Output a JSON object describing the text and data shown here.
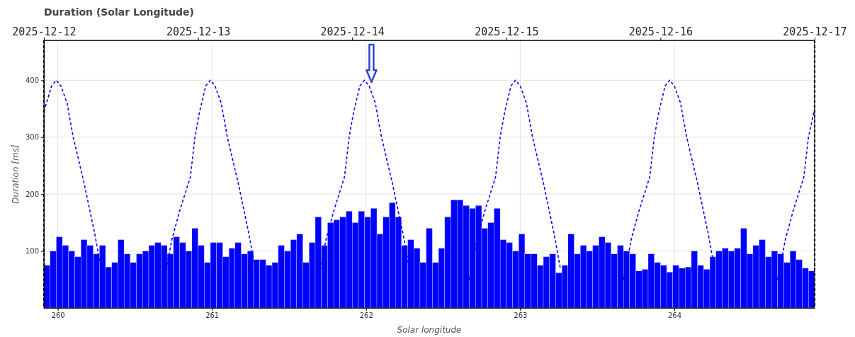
{
  "chart_data": {
    "type": "bar",
    "title": "Duration (Solar Longitude)",
    "xlabel": "Solar longitude",
    "ylabel": "Duration [ms]",
    "xlim": [
      259.91,
      264.91
    ],
    "xticks": [
      260,
      261,
      262,
      263,
      264
    ],
    "ylim": [
      0,
      470
    ],
    "yticks": [
      100,
      200,
      300,
      400
    ],
    "x2lim": [
      "2025-12-12",
      "2025-12-17"
    ],
    "x2ticks": [
      "2025-12-12",
      "2025-12-13",
      "2025-12-14",
      "2025-12-15",
      "2025-12-16",
      "2025-12-17"
    ],
    "grid": true,
    "series": [
      {
        "color": "#0000ff",
        "x": [
          259.93,
          259.97,
          260.01,
          260.05,
          260.09,
          260.13,
          260.17,
          260.21,
          260.25,
          260.29,
          260.33,
          260.37,
          260.41,
          260.45,
          260.49,
          260.53,
          260.57,
          260.61,
          260.65,
          260.69,
          260.73,
          260.77,
          260.81,
          260.85,
          260.89,
          260.93,
          260.97,
          261.01,
          261.05,
          261.09,
          261.13,
          261.17,
          261.21,
          261.25,
          261.29,
          261.33,
          261.37,
          261.41,
          261.45,
          261.49,
          261.53,
          261.57,
          261.61,
          261.65,
          261.69,
          261.73,
          261.77,
          261.81,
          261.85,
          261.89,
          261.93,
          261.97,
          262.01,
          262.05,
          262.09,
          262.13,
          262.17,
          262.21,
          262.25,
          262.29,
          262.33,
          262.37,
          262.41,
          262.45,
          262.49,
          262.53,
          262.57,
          262.61,
          262.65,
          262.69,
          262.73,
          262.77,
          262.81,
          262.85,
          262.89,
          262.93,
          262.97,
          263.01,
          263.05,
          263.09,
          263.13,
          263.17,
          263.21,
          263.25,
          263.29,
          263.33,
          263.37,
          263.41,
          263.45,
          263.49,
          263.53,
          263.57,
          263.61,
          263.65,
          263.69,
          263.73,
          263.77,
          263.81,
          263.85,
          263.89,
          263.93,
          263.97,
          264.01,
          264.05,
          264.09,
          264.13,
          264.17,
          264.21,
          264.25,
          264.29,
          264.33,
          264.37,
          264.41,
          264.45,
          264.49,
          264.53,
          264.57,
          264.61,
          264.65,
          264.69,
          264.73,
          264.77,
          264.81,
          264.85,
          264.89
        ],
        "values": [
          75,
          100,
          125,
          110,
          100,
          90,
          120,
          110,
          95,
          110,
          72,
          80,
          120,
          95,
          80,
          95,
          100,
          110,
          115,
          110,
          95,
          125,
          115,
          100,
          140,
          110,
          80,
          115,
          115,
          90,
          105,
          115,
          95,
          100,
          85,
          85,
          75,
          80,
          110,
          100,
          120,
          130,
          80,
          115,
          160,
          110,
          150,
          155,
          160,
          170,
          150,
          170,
          160,
          175,
          130,
          160,
          185,
          160,
          110,
          120,
          105,
          80,
          140,
          80,
          105,
          160,
          190,
          190,
          180,
          175,
          180,
          140,
          150,
          175,
          120,
          115,
          100,
          130,
          95,
          95,
          75,
          90,
          95,
          62,
          75,
          130,
          95,
          110,
          100,
          110,
          125,
          115,
          95,
          110,
          100,
          95,
          65,
          68,
          95,
          80,
          75,
          63,
          75,
          70,
          72,
          100,
          75,
          68,
          90,
          100,
          105,
          100,
          105,
          140,
          95,
          110,
          120,
          90,
          100,
          95,
          80,
          100,
          85,
          70,
          65
        ]
      },
      {
        "type": "line",
        "color": "#0000ff",
        "line_style": "dashed",
        "marker": "none",
        "x": [
          259.91,
          259.96,
          259.99,
          260.02,
          260.06,
          260.1,
          260.17,
          260.24,
          260.28,
          260.5,
          260.69,
          260.74,
          260.79,
          260.86,
          260.89,
          260.92,
          260.96,
          260.99,
          261.02,
          261.06,
          261.1,
          261.17,
          261.24,
          261.28,
          261.5,
          261.69,
          261.74,
          261.79,
          261.86,
          261.89,
          261.92,
          261.96,
          261.99,
          262.02,
          262.06,
          262.1,
          262.17,
          262.24,
          262.28,
          262.5,
          262.67,
          262.72,
          262.77,
          262.84,
          262.87,
          262.9,
          262.94,
          262.97,
          263.0,
          263.04,
          263.08,
          263.15,
          263.22,
          263.26,
          263.5,
          263.67,
          263.72,
          263.77,
          263.84,
          263.87,
          263.9,
          263.94,
          263.97,
          264.0,
          264.04,
          264.08,
          264.15,
          264.22,
          264.26,
          264.5,
          264.67,
          264.72,
          264.77,
          264.84,
          264.87,
          264.91
        ],
        "values": [
          345,
          390,
          400,
          390,
          360,
          300,
          220,
          130,
          70,
          null,
          50,
          120,
          170,
          230,
          300,
          345,
          390,
          400,
          390,
          360,
          300,
          220,
          130,
          70,
          null,
          50,
          120,
          170,
          230,
          300,
          345,
          390,
          400,
          390,
          360,
          300,
          220,
          130,
          70,
          null,
          50,
          120,
          170,
          230,
          300,
          345,
          390,
          400,
          390,
          360,
          300,
          220,
          130,
          70,
          null,
          50,
          120,
          170,
          230,
          300,
          345,
          390,
          400,
          390,
          360,
          300,
          220,
          130,
          70,
          null,
          50,
          120,
          170,
          230,
          300,
          350
        ]
      }
    ],
    "ref_lines": [
      {
        "axis": "x",
        "value": 259.91,
        "color": "#000000",
        "line_style": "dashed"
      },
      {
        "axis": "x",
        "value": 264.91,
        "color": "#000000",
        "line_style": "dashed"
      }
    ]
  }
}
